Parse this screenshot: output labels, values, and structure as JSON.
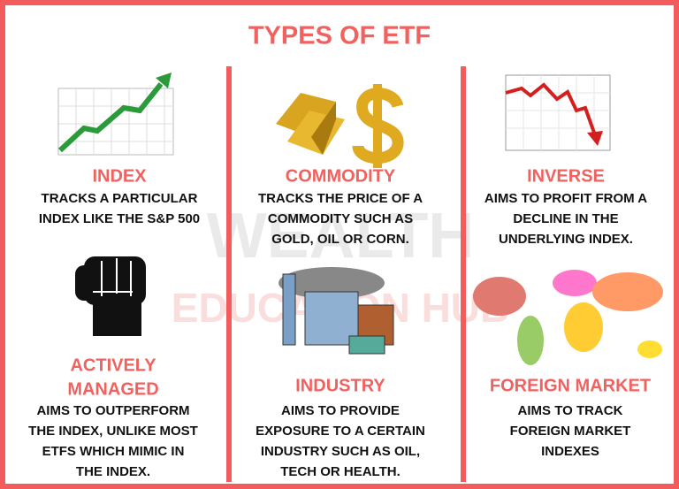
{
  "title": "TYPES OF ETF",
  "watermark": [
    "WEALTH",
    "EDUCATION HUB"
  ],
  "cards": [
    {
      "title": [
        "INDEX"
      ],
      "description": [
        "TRACKS A PARTICULAR",
        "INDEX LIKE THE S&P 500"
      ]
    },
    {
      "title": [
        "COMMODITY"
      ],
      "description": [
        "TRACKS THE PRICE OF A",
        "COMMODITY SUCH AS",
        "GOLD, OIL OR CORN."
      ]
    },
    {
      "title": [
        "INVERSE"
      ],
      "description": [
        "AIMS TO PROFIT FROM A",
        "DECLINE IN THE",
        "UNDERLYING INDEX."
      ]
    },
    {
      "title": [
        "ACTIVELY",
        "MANAGED"
      ],
      "description": [
        "AIMS TO OUTPERFORM",
        "THE INDEX, UNLIKE MOST",
        "ETFS WHICH MIMIC IN",
        "THE INDEX."
      ]
    },
    {
      "title": [
        "INDUSTRY"
      ],
      "description": [
        "AIMS TO PROVIDE",
        "EXPOSURE TO A CERTAIN",
        "INDUSTRY SUCH AS OIL,",
        "TECH OR HEALTH."
      ]
    },
    {
      "title": [
        "FOREIGN MARKET"
      ],
      "description": [
        "AIMS TO TRACK",
        "FOREIGN MARKET",
        "INDEXES"
      ]
    }
  ]
}
